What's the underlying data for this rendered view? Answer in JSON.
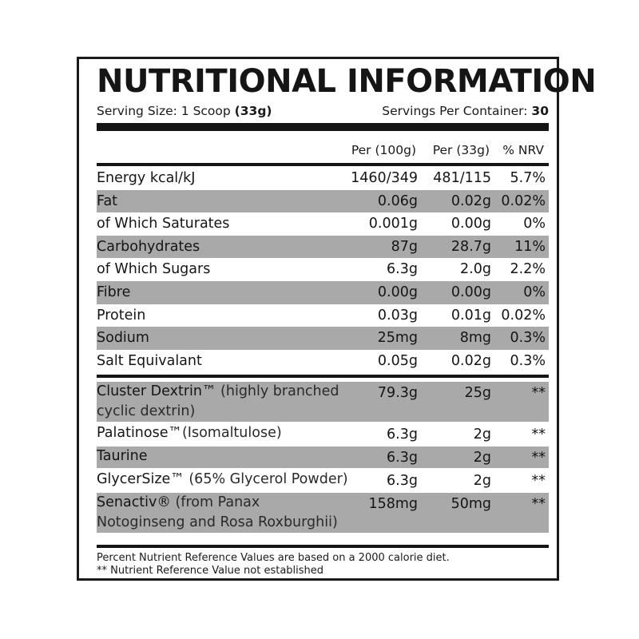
{
  "panel": {
    "title": "NUTRITIONAL INFORMATION",
    "serving_size_label": "Serving Size: 1 Scoop ",
    "serving_size_value": "(33g)",
    "servings_label": "Servings Per Container: ",
    "servings_value": "30"
  },
  "columns": {
    "per_100g": "Per (100g)",
    "per_serving": "Per (33g)",
    "nrv": "% NRV"
  },
  "nutrients": [
    {
      "name": "Energy kcal/kJ",
      "per_100g": "1460/349",
      "per_serving": "481/115",
      "nrv": "5.7%",
      "shaded": false
    },
    {
      "name": "Fat",
      "per_100g": "0.06g",
      "per_serving": "0.02g",
      "nrv": "0.02%",
      "shaded": true
    },
    {
      "name": "of Which Saturates",
      "per_100g": "0.001g",
      "per_serving": "0.00g",
      "nrv": "0%",
      "shaded": false
    },
    {
      "name": "Carbohydrates",
      "per_100g": "87g",
      "per_serving": "28.7g",
      "nrv": "11%",
      "shaded": true
    },
    {
      "name": "of Which Sugars",
      "per_100g": "6.3g",
      "per_serving": "2.0g",
      "nrv": "2.2%",
      "shaded": false
    },
    {
      "name": "Fibre",
      "per_100g": "0.00g",
      "per_serving": "0.00g",
      "nrv": "0%",
      "shaded": true
    },
    {
      "name": "Protein",
      "per_100g": "0.03g",
      "per_serving": "0.01g",
      "nrv": "0.02%",
      "shaded": false
    },
    {
      "name": "Sodium",
      "per_100g": "25mg",
      "per_serving": "8mg",
      "nrv": "0.3%",
      "shaded": true
    },
    {
      "name": "Salt Equivalant",
      "per_100g": "0.05g",
      "per_serving": "0.02g",
      "nrv": "0.3%",
      "shaded": false
    }
  ],
  "ingredients": [
    {
      "name": "Cluster Dextrin™",
      "desc": " (highly branched cyclic dextrin)",
      "per_100g": "79.3g",
      "per_serving": "25g",
      "nrv": "**",
      "shaded": true,
      "lines": 2
    },
    {
      "name": "Palatinose™",
      "desc": "(Isomaltulose)",
      "per_100g": "6.3g",
      "per_serving": "2g",
      "nrv": "**",
      "shaded": false,
      "lines": 1
    },
    {
      "name": "Taurine",
      "desc": "",
      "per_100g": "6.3g",
      "per_serving": "2g",
      "nrv": "**",
      "shaded": true,
      "lines": 1
    },
    {
      "name": "GlycerSize™",
      "desc": " (65% Glycerol Powder)",
      "per_100g": "6.3g",
      "per_serving": "2g",
      "nrv": "**",
      "shaded": false,
      "lines": 1
    },
    {
      "name": "Senactiv®",
      "desc": " (from Panax Notoginseng and Rosa Roxburghii)",
      "per_100g": "158mg",
      "per_serving": "50mg",
      "nrv": "**",
      "shaded": true,
      "lines": 2
    }
  ],
  "footnotes": {
    "line1": "Percent Nutrient Reference Values are based on a 2000 calorie diet.",
    "line2": "** Nutrient Reference Value not established"
  },
  "colors": {
    "border": "#1a1a1a",
    "shade": "#a9a9a9",
    "text": "#151515"
  }
}
